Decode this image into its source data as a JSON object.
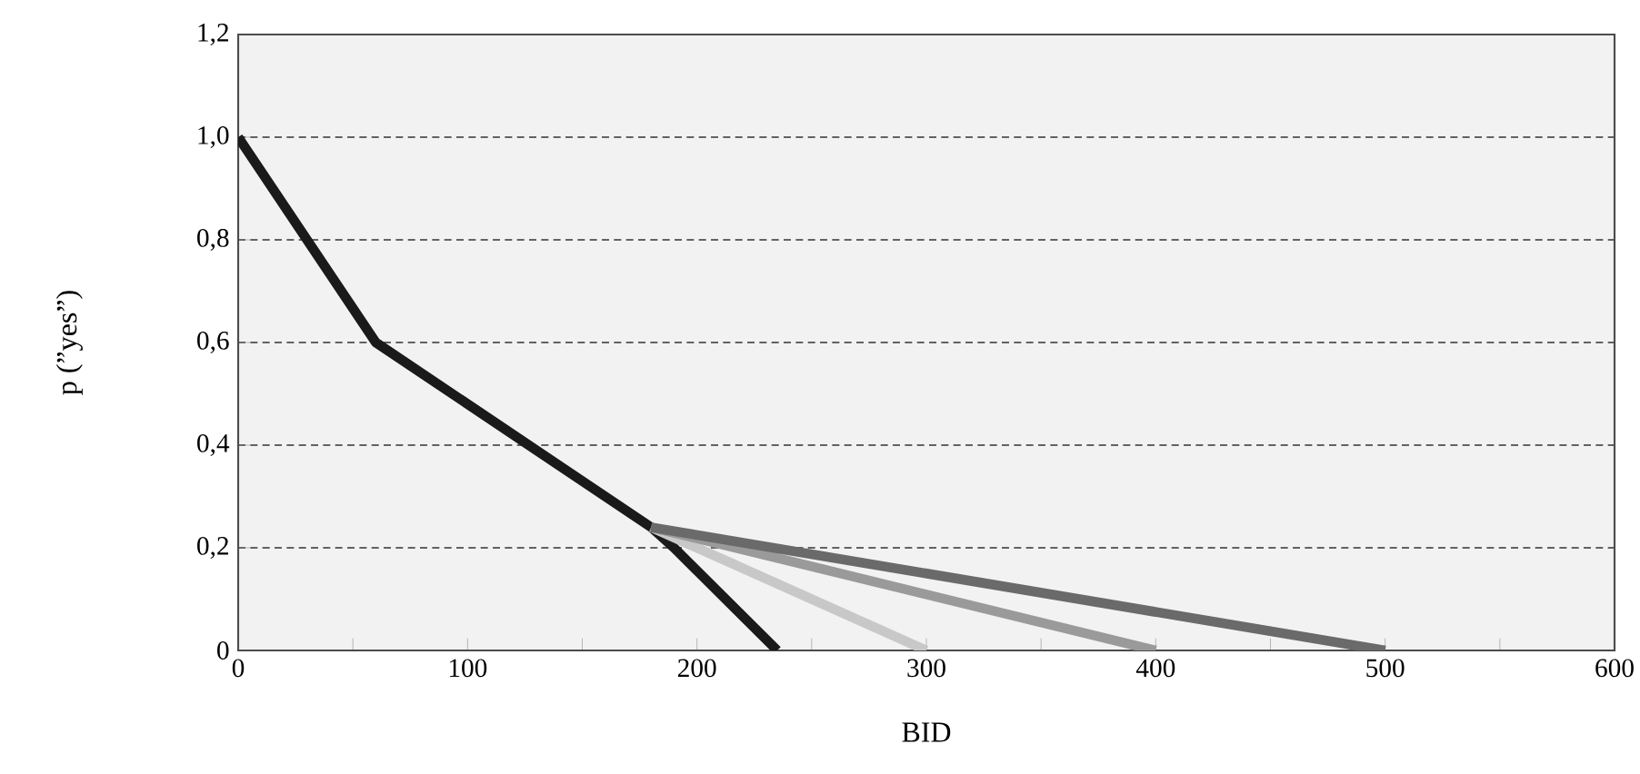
{
  "chart_data": {
    "type": "line",
    "xlabel": "BID",
    "ylabel": "p (”yes”)",
    "xlim": [
      0,
      600
    ],
    "ylim": [
      0,
      1.2
    ],
    "xticks": [
      0,
      {
        "value": 50,
        "label": null
      },
      100,
      {
        "value": 150,
        "label": null
      },
      200,
      {
        "value": 250,
        "label": null
      },
      300,
      {
        "value": 350,
        "label": null
      },
      400,
      {
        "value": 450,
        "label": null
      },
      500,
      {
        "value": 550,
        "label": null
      },
      600
    ],
    "yticks": [
      0,
      {
        "value": 0.2,
        "label": "0,2"
      },
      {
        "value": 0.4,
        "label": "0,4"
      },
      {
        "value": 0.6,
        "label": "0,6"
      },
      {
        "value": 0.8,
        "label": "0,8"
      },
      {
        "value": 1.0,
        "label": "1,0"
      },
      {
        "value": 1.2,
        "label": "1,2"
      }
    ],
    "grid": "y",
    "line_style": "solid",
    "marker": "none",
    "series": [
      {
        "color": "#1a1a1a",
        "x": [
          0,
          60,
          180,
          190,
          235
        ],
        "values": [
          1.0,
          0.6,
          0.24,
          0.2,
          0
        ]
      },
      {
        "color": "#c8c8c8",
        "x": [
          180,
          300
        ],
        "values": [
          0.24,
          0
        ]
      },
      {
        "color": "#9a9a9a",
        "x": [
          180,
          400
        ],
        "values": [
          0.24,
          0
        ]
      },
      {
        "color": "#6a6a6a",
        "x": [
          180,
          500
        ],
        "values": [
          0.24,
          0
        ]
      }
    ]
  }
}
